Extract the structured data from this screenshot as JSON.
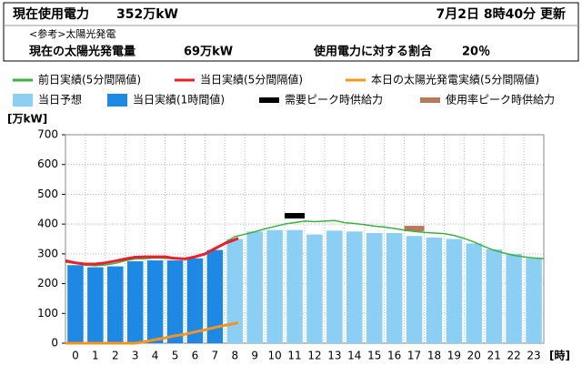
{
  "header": {
    "usage_label": "現在使用電力",
    "usage_value": "352万kW",
    "updated": "7月2日 8時40分 更新",
    "reference": "<参考>太陽光発電",
    "solar_label": "現在の太陽光発電量",
    "solar_value": "69万kW",
    "ratio_label": "使用電力に対する割合",
    "ratio_value": "20％"
  },
  "chart_data": {
    "type": "bar",
    "y_label": "[万kW]",
    "x_label": "[時]",
    "categories": [
      "0",
      "1",
      "2",
      "3",
      "4",
      "5",
      "6",
      "7",
      "8",
      "9",
      "10",
      "11",
      "12",
      "13",
      "14",
      "15",
      "16",
      "17",
      "18",
      "19",
      "20",
      "21",
      "22",
      "23"
    ],
    "ylim": [
      0,
      700
    ],
    "yticks": [
      0,
      100,
      200,
      300,
      400,
      500,
      600,
      700
    ],
    "xlim": [
      0,
      24
    ],
    "grid": true,
    "bar_series": [
      {
        "name": "当日予想",
        "color": "#8ccff5",
        "values": [
          null,
          null,
          null,
          null,
          null,
          null,
          null,
          null,
          350,
          375,
          380,
          380,
          365,
          378,
          375,
          370,
          370,
          360,
          355,
          350,
          335,
          315,
          300,
          285
        ]
      },
      {
        "name": "当日実績(1時間値)",
        "color": "#1e88e5",
        "values": [
          262,
          255,
          258,
          275,
          278,
          278,
          285,
          313,
          null,
          null,
          null,
          null,
          null,
          null,
          null,
          null,
          null,
          null,
          null,
          null,
          null,
          null,
          null,
          null
        ]
      }
    ],
    "line_series": [
      {
        "name": "前日実績(5分間隔値)",
        "color": "#3cb043",
        "width": 1.5,
        "x": [
          0,
          0.5,
          1,
          1.5,
          2,
          2.5,
          3,
          3.5,
          4,
          4.5,
          5,
          5.5,
          6,
          6.5,
          7,
          7.5,
          8,
          8.5,
          9,
          9.5,
          10,
          10.5,
          11,
          11.5,
          12,
          12.5,
          13,
          13.5,
          14,
          14.5,
          15,
          15.5,
          16,
          16.5,
          17,
          17.5,
          18,
          18.5,
          19,
          19.5,
          20,
          20.5,
          21,
          21.5,
          22,
          22.5,
          23,
          23.5,
          24
        ],
        "values": [
          272,
          268,
          262,
          260,
          263,
          268,
          277,
          283,
          284,
          286,
          285,
          283,
          283,
          290,
          300,
          318,
          338,
          358,
          366,
          374,
          384,
          392,
          400,
          405,
          410,
          408,
          410,
          412,
          405,
          402,
          398,
          393,
          390,
          385,
          380,
          375,
          372,
          370,
          368,
          362,
          352,
          340,
          325,
          312,
          303,
          295,
          290,
          286,
          284
        ]
      },
      {
        "name": "当日実績(5分間隔値)",
        "color": "#e8202a",
        "width": 3,
        "x": [
          0,
          0.5,
          1,
          1.5,
          2,
          2.5,
          3,
          3.5,
          4,
          4.5,
          5,
          5.5,
          6,
          6.5,
          7,
          7.5,
          8,
          8.5,
          8.67
        ],
        "values": [
          277,
          270,
          266,
          266,
          270,
          276,
          283,
          289,
          290,
          290,
          290,
          285,
          283,
          290,
          300,
          318,
          335,
          348,
          352
        ]
      },
      {
        "name": "本日の太陽光発電実績(5分間隔値)",
        "color": "#f7941d",
        "width": 3,
        "x": [
          0,
          0.5,
          1,
          1.5,
          2,
          2.5,
          3,
          3.5,
          4,
          4.5,
          5,
          5.5,
          6,
          6.5,
          7,
          7.5,
          8,
          8.5,
          8.67
        ],
        "values": [
          0,
          0,
          0,
          0,
          0,
          0,
          0,
          0,
          5,
          12,
          18,
          25,
          30,
          38,
          45,
          53,
          60,
          66,
          69
        ]
      }
    ],
    "peak_markers": [
      {
        "name": "需要ピーク時供給力",
        "color": "#000000",
        "category": "11",
        "value": 428
      },
      {
        "name": "使用率ピーク時供給力",
        "color": "#b87a5a",
        "category": "17",
        "value": 385
      }
    ]
  }
}
